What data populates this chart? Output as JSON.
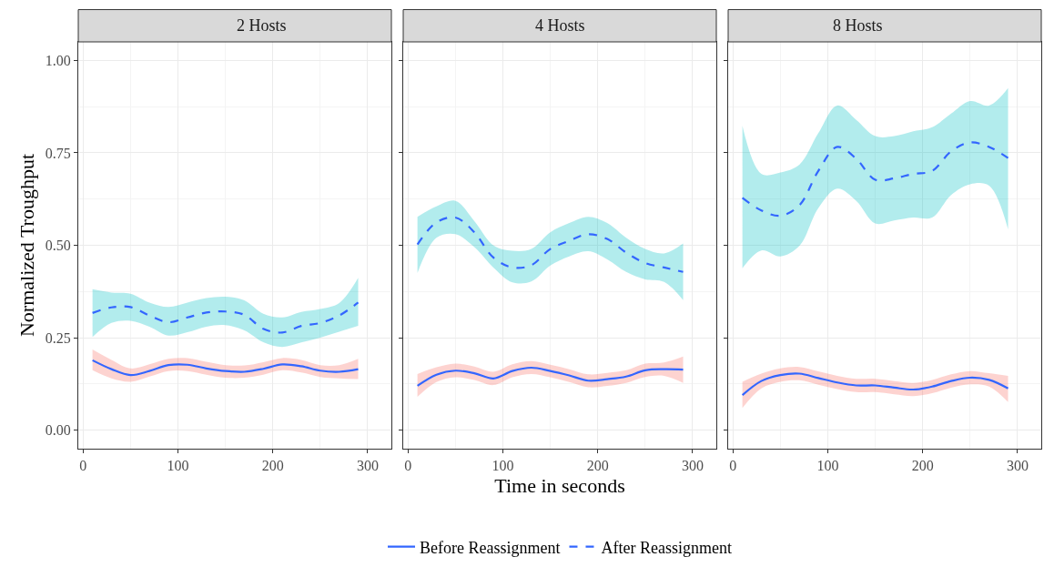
{
  "chart_data": [
    {
      "type": "line",
      "title": "2 Hosts",
      "ylabel": "Normalized Troughput",
      "x": [
        10,
        30,
        50,
        70,
        90,
        110,
        130,
        150,
        170,
        190,
        210,
        230,
        250,
        270,
        290
      ],
      "xlim": [
        -5,
        325
      ],
      "xticks": [
        0,
        100,
        200,
        300
      ],
      "ylim": [
        -0.05,
        1.05
      ],
      "yticks": [
        {
          "value": 0,
          "label": "0.00"
        },
        {
          "value": 0.25,
          "label": "0.25"
        },
        {
          "value": 0.5,
          "label": "0.50"
        },
        {
          "value": 0.75,
          "label": "0.75"
        },
        {
          "value": 1,
          "label": "1.00"
        }
      ],
      "grid": true,
      "legend": "bottom",
      "series": [
        {
          "name": "Before Reassignment",
          "color": "#3366ff",
          "line_style": "solid",
          "values": [
            0.189,
            0.165,
            0.149,
            0.16,
            0.176,
            0.177,
            0.167,
            0.16,
            0.158,
            0.166,
            0.178,
            0.173,
            0.161,
            0.158,
            0.165
          ],
          "lower": [
            0.162,
            0.14,
            0.131,
            0.145,
            0.16,
            0.16,
            0.15,
            0.142,
            0.142,
            0.15,
            0.162,
            0.156,
            0.144,
            0.14,
            0.138
          ],
          "upper": [
            0.218,
            0.19,
            0.167,
            0.178,
            0.193,
            0.195,
            0.185,
            0.176,
            0.175,
            0.184,
            0.195,
            0.19,
            0.176,
            0.176,
            0.193
          ]
        },
        {
          "name": "After Reassignment",
          "color": "#3366ff",
          "line_style": "dashed",
          "values": [
            0.317,
            0.332,
            0.333,
            0.31,
            0.292,
            0.305,
            0.318,
            0.321,
            0.312,
            0.274,
            0.264,
            0.282,
            0.29,
            0.31,
            0.345
          ],
          "lower": [
            0.252,
            0.29,
            0.296,
            0.28,
            0.256,
            0.265,
            0.28,
            0.284,
            0.27,
            0.238,
            0.225,
            0.237,
            0.25,
            0.266,
            0.282
          ],
          "upper": [
            0.381,
            0.372,
            0.369,
            0.345,
            0.333,
            0.345,
            0.357,
            0.361,
            0.351,
            0.315,
            0.305,
            0.32,
            0.328,
            0.344,
            0.412
          ]
        }
      ]
    },
    {
      "type": "line",
      "title": "4 Hosts",
      "xlabel": "Time in seconds",
      "x": [
        10,
        30,
        50,
        70,
        90,
        110,
        130,
        150,
        170,
        190,
        210,
        230,
        250,
        270,
        290
      ],
      "xlim": [
        -5,
        325
      ],
      "xticks": [
        0,
        100,
        200,
        300
      ],
      "ylim": [
        -0.05,
        1.05
      ],
      "yticks": [
        {
          "value": 0,
          "label": null
        },
        {
          "value": 0.25,
          "label": null
        },
        {
          "value": 0.5,
          "label": null
        },
        {
          "value": 0.75,
          "label": null
        },
        {
          "value": 1,
          "label": null
        }
      ],
      "grid": true,
      "tick_labels": "x",
      "series": [
        {
          "color": "#3366ff",
          "line_style": "solid",
          "values": [
            0.12,
            0.15,
            0.161,
            0.154,
            0.14,
            0.16,
            0.169,
            0.16,
            0.148,
            0.134,
            0.138,
            0.145,
            0.162,
            0.165,
            0.164
          ],
          "lower": [
            0.09,
            0.13,
            0.143,
            0.136,
            0.122,
            0.143,
            0.152,
            0.143,
            0.13,
            0.116,
            0.12,
            0.128,
            0.144,
            0.147,
            0.128
          ],
          "upper": [
            0.152,
            0.17,
            0.18,
            0.172,
            0.158,
            0.178,
            0.187,
            0.177,
            0.165,
            0.151,
            0.155,
            0.162,
            0.18,
            0.183,
            0.199
          ]
        },
        {
          "color": "#3366ff",
          "line_style": "dashed",
          "values": [
            0.502,
            0.562,
            0.575,
            0.535,
            0.467,
            0.44,
            0.446,
            0.49,
            0.512,
            0.53,
            0.517,
            0.48,
            0.452,
            0.44,
            0.428
          ],
          "lower": [
            0.425,
            0.52,
            0.53,
            0.495,
            0.44,
            0.4,
            0.402,
            0.445,
            0.47,
            0.484,
            0.462,
            0.428,
            0.408,
            0.401,
            0.352
          ],
          "upper": [
            0.577,
            0.605,
            0.62,
            0.565,
            0.5,
            0.485,
            0.49,
            0.535,
            0.56,
            0.577,
            0.56,
            0.52,
            0.49,
            0.478,
            0.505
          ]
        }
      ]
    },
    {
      "type": "line",
      "title": "8 Hosts",
      "x": [
        10,
        30,
        50,
        70,
        90,
        110,
        130,
        150,
        170,
        190,
        210,
        230,
        250,
        270,
        290
      ],
      "xlim": [
        -5,
        325
      ],
      "xticks": [
        0,
        100,
        200,
        300
      ],
      "ylim": [
        -0.05,
        1.05
      ],
      "yticks": [
        {
          "value": 0,
          "label": null
        },
        {
          "value": 0.25,
          "label": null
        },
        {
          "value": 0.5,
          "label": null
        },
        {
          "value": 0.75,
          "label": null
        },
        {
          "value": 1,
          "label": null
        }
      ],
      "grid": true,
      "tick_labels": "x",
      "series": [
        {
          "color": "#3366ff",
          "line_style": "solid",
          "values": [
            0.095,
            0.133,
            0.149,
            0.153,
            0.141,
            0.129,
            0.121,
            0.121,
            0.115,
            0.11,
            0.118,
            0.133,
            0.142,
            0.136,
            0.113
          ],
          "lower": [
            0.06,
            0.113,
            0.131,
            0.135,
            0.123,
            0.111,
            0.103,
            0.103,
            0.097,
            0.092,
            0.1,
            0.115,
            0.124,
            0.118,
            0.076
          ],
          "upper": [
            0.131,
            0.153,
            0.167,
            0.171,
            0.159,
            0.147,
            0.139,
            0.139,
            0.133,
            0.128,
            0.136,
            0.151,
            0.16,
            0.154,
            0.147
          ]
        },
        {
          "color": "#3366ff",
          "line_style": "dashed",
          "values": [
            0.628,
            0.594,
            0.58,
            0.608,
            0.701,
            0.766,
            0.734,
            0.677,
            0.681,
            0.693,
            0.701,
            0.754,
            0.778,
            0.766,
            0.736
          ],
          "lower": [
            0.438,
            0.486,
            0.47,
            0.498,
            0.6,
            0.653,
            0.62,
            0.559,
            0.567,
            0.575,
            0.575,
            0.636,
            0.665,
            0.661,
            0.543
          ],
          "upper": [
            0.823,
            0.693,
            0.697,
            0.718,
            0.803,
            0.878,
            0.839,
            0.795,
            0.795,
            0.808,
            0.819,
            0.856,
            0.89,
            0.878,
            0.925
          ]
        }
      ]
    }
  ]
}
